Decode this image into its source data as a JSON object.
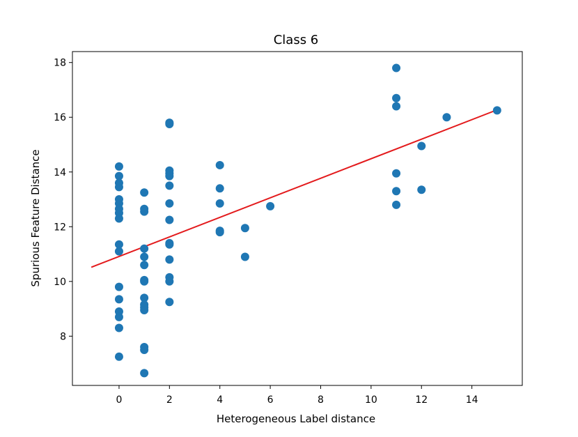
{
  "chart_data": {
    "type": "scatter",
    "title": "Class 6",
    "xlabel": "Heterogeneous Label distance",
    "ylabel": "Spurious Feature Distance",
    "xlim": [
      -1.85,
      16.0
    ],
    "ylim": [
      6.2,
      18.4
    ],
    "xticks": [
      0,
      2,
      4,
      6,
      8,
      10,
      12,
      14
    ],
    "yticks": [
      8,
      10,
      12,
      14,
      16,
      18
    ],
    "grid": false,
    "series": [
      {
        "kind": "scatter",
        "color": "#1f77b4",
        "points": [
          [
            0,
            14.2
          ],
          [
            0,
            13.85
          ],
          [
            0,
            13.6
          ],
          [
            0,
            13.45
          ],
          [
            0,
            13.0
          ],
          [
            0,
            12.85
          ],
          [
            0,
            12.65
          ],
          [
            0,
            12.5
          ],
          [
            0,
            12.3
          ],
          [
            0,
            11.35
          ],
          [
            0,
            11.1
          ],
          [
            0,
            9.8
          ],
          [
            0,
            9.35
          ],
          [
            0,
            8.9
          ],
          [
            0,
            8.7
          ],
          [
            0,
            8.3
          ],
          [
            0,
            7.25
          ],
          [
            1,
            13.25
          ],
          [
            1,
            12.65
          ],
          [
            1,
            12.55
          ],
          [
            1,
            11.2
          ],
          [
            1,
            10.9
          ],
          [
            1,
            10.6
          ],
          [
            1,
            10.05
          ],
          [
            1,
            10.0
          ],
          [
            1,
            9.4
          ],
          [
            1,
            9.15
          ],
          [
            1,
            9.05
          ],
          [
            1,
            8.95
          ],
          [
            1,
            7.6
          ],
          [
            1,
            7.5
          ],
          [
            1,
            6.65
          ],
          [
            2,
            15.8
          ],
          [
            2,
            15.75
          ],
          [
            2,
            14.05
          ],
          [
            2,
            13.95
          ],
          [
            2,
            13.85
          ],
          [
            2,
            13.5
          ],
          [
            2,
            12.85
          ],
          [
            2,
            12.25
          ],
          [
            2,
            11.4
          ],
          [
            2,
            11.35
          ],
          [
            2,
            10.8
          ],
          [
            2,
            10.15
          ],
          [
            2,
            10.0
          ],
          [
            2,
            9.25
          ],
          [
            4,
            14.25
          ],
          [
            4,
            13.4
          ],
          [
            4,
            12.85
          ],
          [
            4,
            11.85
          ],
          [
            4,
            11.8
          ],
          [
            5,
            11.95
          ],
          [
            5,
            10.9
          ],
          [
            6,
            12.75
          ],
          [
            11,
            17.8
          ],
          [
            11,
            16.7
          ],
          [
            11,
            16.4
          ],
          [
            11,
            13.95
          ],
          [
            11,
            13.3
          ],
          [
            11,
            12.8
          ],
          [
            12,
            14.95
          ],
          [
            12,
            13.35
          ],
          [
            13,
            16.0
          ],
          [
            15,
            16.25
          ]
        ]
      },
      {
        "kind": "line",
        "color": "#e31a1c",
        "points": [
          [
            -1.1,
            10.52
          ],
          [
            15.0,
            16.27
          ]
        ]
      }
    ]
  }
}
